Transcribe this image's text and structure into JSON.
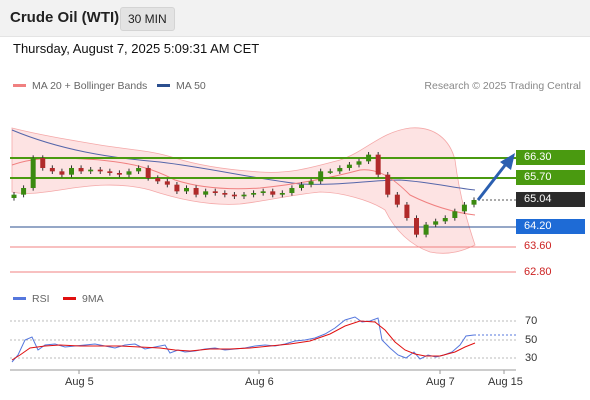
{
  "header": {
    "instrument": "Crude Oil (WTI)",
    "timeframe": "30 MIN"
  },
  "datetime": "Thursday, August 7, 2025 5:09:31 AM CET",
  "legend": {
    "bollinger": "MA 20 + Bollinger Bands",
    "ma50": "MA 50",
    "rsi": "RSI",
    "rsi_ma": "9MA"
  },
  "source": "Research © 2025 Trading Central",
  "colors": {
    "bollinger": "#f08080",
    "ma50": "#2b4f8f",
    "rsi": "#5577dd",
    "rsi_ma": "#e01010",
    "resistance": "#4a9a10",
    "pivot": "#1e6bd6",
    "support": "#cc2222",
    "current": "#2b2b2b"
  },
  "price_levels": {
    "r2": "66.30",
    "r1": "65.70",
    "last": "65.04",
    "pivot": "64.20",
    "s1": "63.60",
    "s2": "62.80"
  },
  "rsi_levels": [
    "70",
    "50",
    "30"
  ],
  "x_axis": [
    "Aug 5",
    "Aug 6",
    "Aug 7",
    "Aug 15"
  ],
  "chart_data": {
    "type": "candlestick",
    "trend": "bullish",
    "last_price": 65.04,
    "levels": {
      "resistance": [
        66.3,
        65.7
      ],
      "pivot": 64.2,
      "support": [
        63.6,
        62.8
      ]
    },
    "close_series": [
      65.2,
      65.4,
      66.3,
      66.0,
      65.9,
      65.8,
      66.0,
      65.9,
      65.95,
      65.9,
      65.85,
      65.8,
      65.9,
      66.0,
      65.7,
      65.6,
      65.5,
      65.3,
      65.4,
      65.2,
      65.3,
      65.25,
      65.2,
      65.15,
      65.2,
      65.25,
      65.3,
      65.2,
      65.25,
      65.4,
      65.5,
      65.6,
      65.9,
      65.9,
      66.0,
      66.1,
      66.2,
      66.4,
      65.8,
      65.2,
      64.9,
      64.5,
      64.0,
      64.3,
      64.4,
      64.5,
      64.7,
      64.9,
      65.04
    ],
    "rsi_range": [
      30,
      70
    ]
  }
}
